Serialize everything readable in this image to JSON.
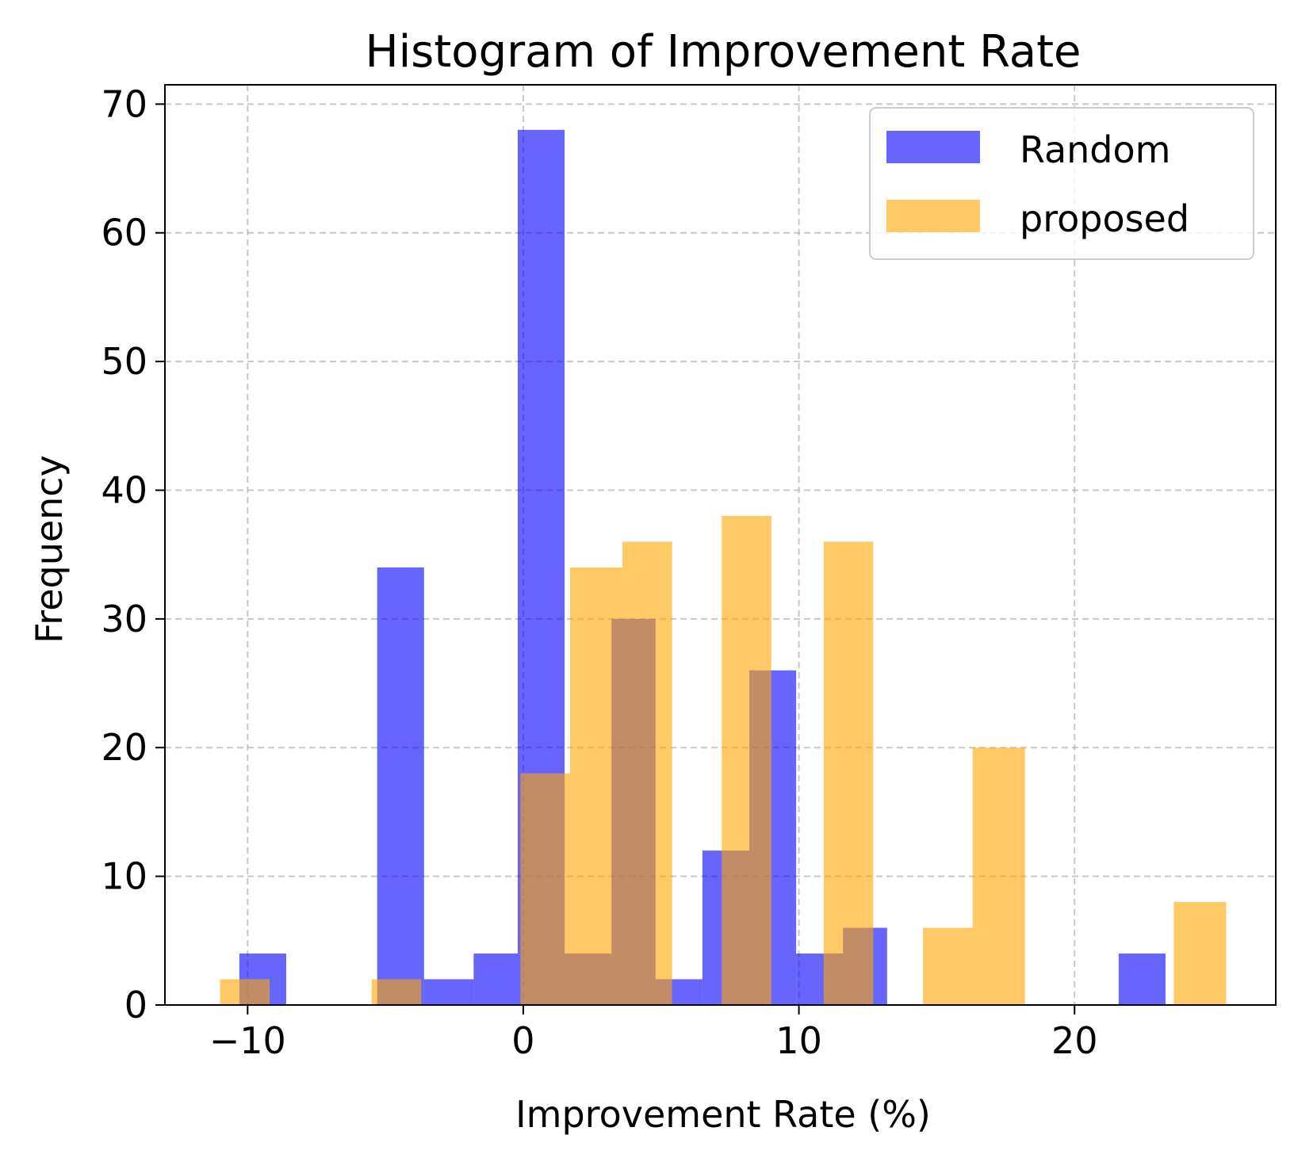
{
  "chart_data": {
    "type": "bar",
    "title": "Histogram of Improvement Rate",
    "xlabel": "Improvement Rate (%)",
    "ylabel": "Frequency",
    "xlim": [
      -13,
      27.3
    ],
    "ylim": [
      0,
      71.5
    ],
    "xticks": [
      -10,
      0,
      10,
      20
    ],
    "xtick_labels": [
      "−10",
      "0",
      "10",
      "20"
    ],
    "yticks": [
      0,
      10,
      20,
      30,
      40,
      50,
      60,
      70
    ],
    "ytick_labels": [
      "0",
      "10",
      "20",
      "30",
      "40",
      "50",
      "60",
      "70"
    ],
    "grid": true,
    "legend_position": "top-right",
    "series": [
      {
        "name": "Random",
        "color": "#0000ff",
        "opacity": 0.6,
        "bin_edges": [
          -10.3,
          -8.6,
          -6.9,
          -5.3,
          -3.6,
          -1.8,
          -0.2,
          1.5,
          3.2,
          4.8,
          6.5,
          8.2,
          9.9,
          11.6,
          13.2,
          14.9,
          16.6,
          18.3,
          20.0,
          21.6,
          23.3
        ],
        "counts": [
          4,
          0,
          0,
          34,
          2,
          4,
          68,
          4,
          30,
          2,
          12,
          26,
          4,
          6,
          0,
          0,
          0,
          0,
          0,
          4
        ]
      },
      {
        "name": "proposed",
        "color": "#ffa500",
        "opacity": 0.6,
        "bin_edges": [
          -11.0,
          -9.2,
          -7.4,
          -5.5,
          -3.7,
          -1.9,
          -0.1,
          1.7,
          3.6,
          5.4,
          7.2,
          9.0,
          10.9,
          12.7,
          14.5,
          16.3,
          18.2,
          20.0,
          21.8,
          23.6,
          25.5
        ],
        "counts": [
          2,
          0,
          0,
          2,
          0,
          0,
          18,
          34,
          36,
          0,
          38,
          0,
          36,
          0,
          6,
          20,
          0,
          0,
          0,
          8
        ]
      }
    ]
  }
}
